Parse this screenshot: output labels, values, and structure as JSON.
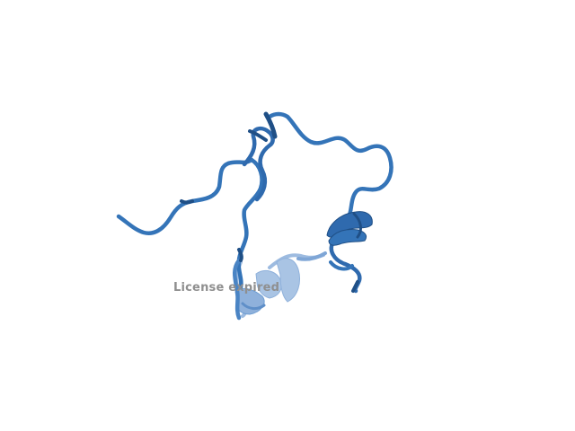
{
  "viewer": {
    "watermark_text": "License expired"
  },
  "structure": {
    "representation": "cartoon",
    "colors": {
      "main": "#3474B8",
      "dark": "#1F4F86",
      "light": "#6E9DD2",
      "pale": "#A9C4E4",
      "background": "#FFFFFF"
    }
  }
}
